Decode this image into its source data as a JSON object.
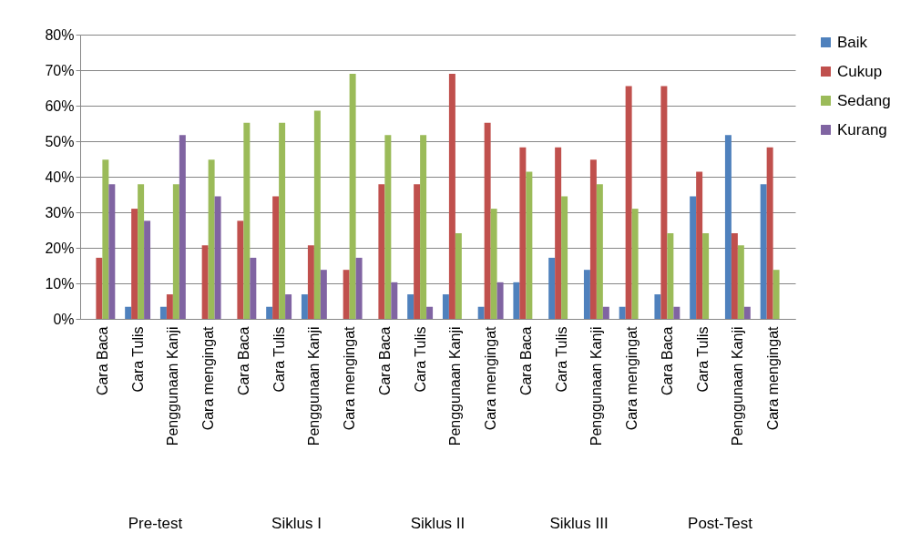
{
  "chart_data": {
    "type": "bar",
    "categories": [
      "Cara Baca",
      "Cara Tulis",
      "Penggunaan Kanji",
      "Cara mengingat",
      "Cara Baca",
      "Cara Tulis",
      "Penggunaan Kanji",
      "Cara mengingat",
      "Cara Baca",
      "Cara Tulis",
      "Penggunaan Kanji",
      "Cara mengingat",
      "Cara Baca",
      "Cara Tulis",
      "Penggunaan Kanji",
      "Cara mengingat",
      "Cara Baca",
      "Cara Tulis",
      "Penggunaan Kanji",
      "Cara mengingat"
    ],
    "annotations": [
      "Pre-test",
      "Siklus I",
      "Siklus II",
      "Siklus III",
      "Post-Test"
    ],
    "series": [
      {
        "name": "Baik",
        "color": "#4f81bd",
        "values": [
          0,
          3.4,
          3.4,
          0,
          0,
          3.4,
          6.9,
          0,
          0,
          6.9,
          6.9,
          3.4,
          10.3,
          17.2,
          13.8,
          3.4,
          6.9,
          34.5,
          51.7,
          37.9
        ]
      },
      {
        "name": "Cukup",
        "color": "#c0504d",
        "values": [
          17.2,
          31.0,
          6.9,
          20.7,
          27.6,
          34.5,
          20.7,
          13.8,
          37.9,
          37.9,
          69.0,
          55.2,
          48.3,
          48.3,
          44.8,
          65.5,
          65.5,
          41.4,
          24.1,
          48.3
        ]
      },
      {
        "name": "Sedang",
        "color": "#9bbb59",
        "values": [
          44.8,
          37.9,
          37.9,
          44.8,
          55.2,
          55.2,
          58.6,
          69.0,
          51.7,
          51.7,
          24.1,
          31.0,
          41.4,
          34.5,
          37.9,
          31.0,
          24.1,
          24.1,
          20.7,
          13.8
        ]
      },
      {
        "name": "Kurang",
        "color": "#8064a2",
        "values": [
          37.9,
          27.6,
          51.7,
          34.5,
          17.2,
          6.9,
          13.8,
          17.2,
          10.3,
          3.4,
          0,
          10.3,
          0,
          0,
          3.4,
          0,
          3.4,
          0,
          3.4,
          0
        ]
      }
    ],
    "ylim": [
      0,
      80
    ],
    "yticks": [
      {
        "value": 0,
        "label": "0%"
      },
      {
        "value": 10,
        "label": "10%"
      },
      {
        "value": 20,
        "label": "20%"
      },
      {
        "value": 30,
        "label": "30%"
      },
      {
        "value": 40,
        "label": "40%"
      },
      {
        "value": 50,
        "label": "50%"
      },
      {
        "value": 60,
        "label": "60%"
      },
      {
        "value": 70,
        "label": "70%"
      },
      {
        "value": 80,
        "label": "80%"
      }
    ],
    "grid": "y",
    "legend": "right"
  }
}
